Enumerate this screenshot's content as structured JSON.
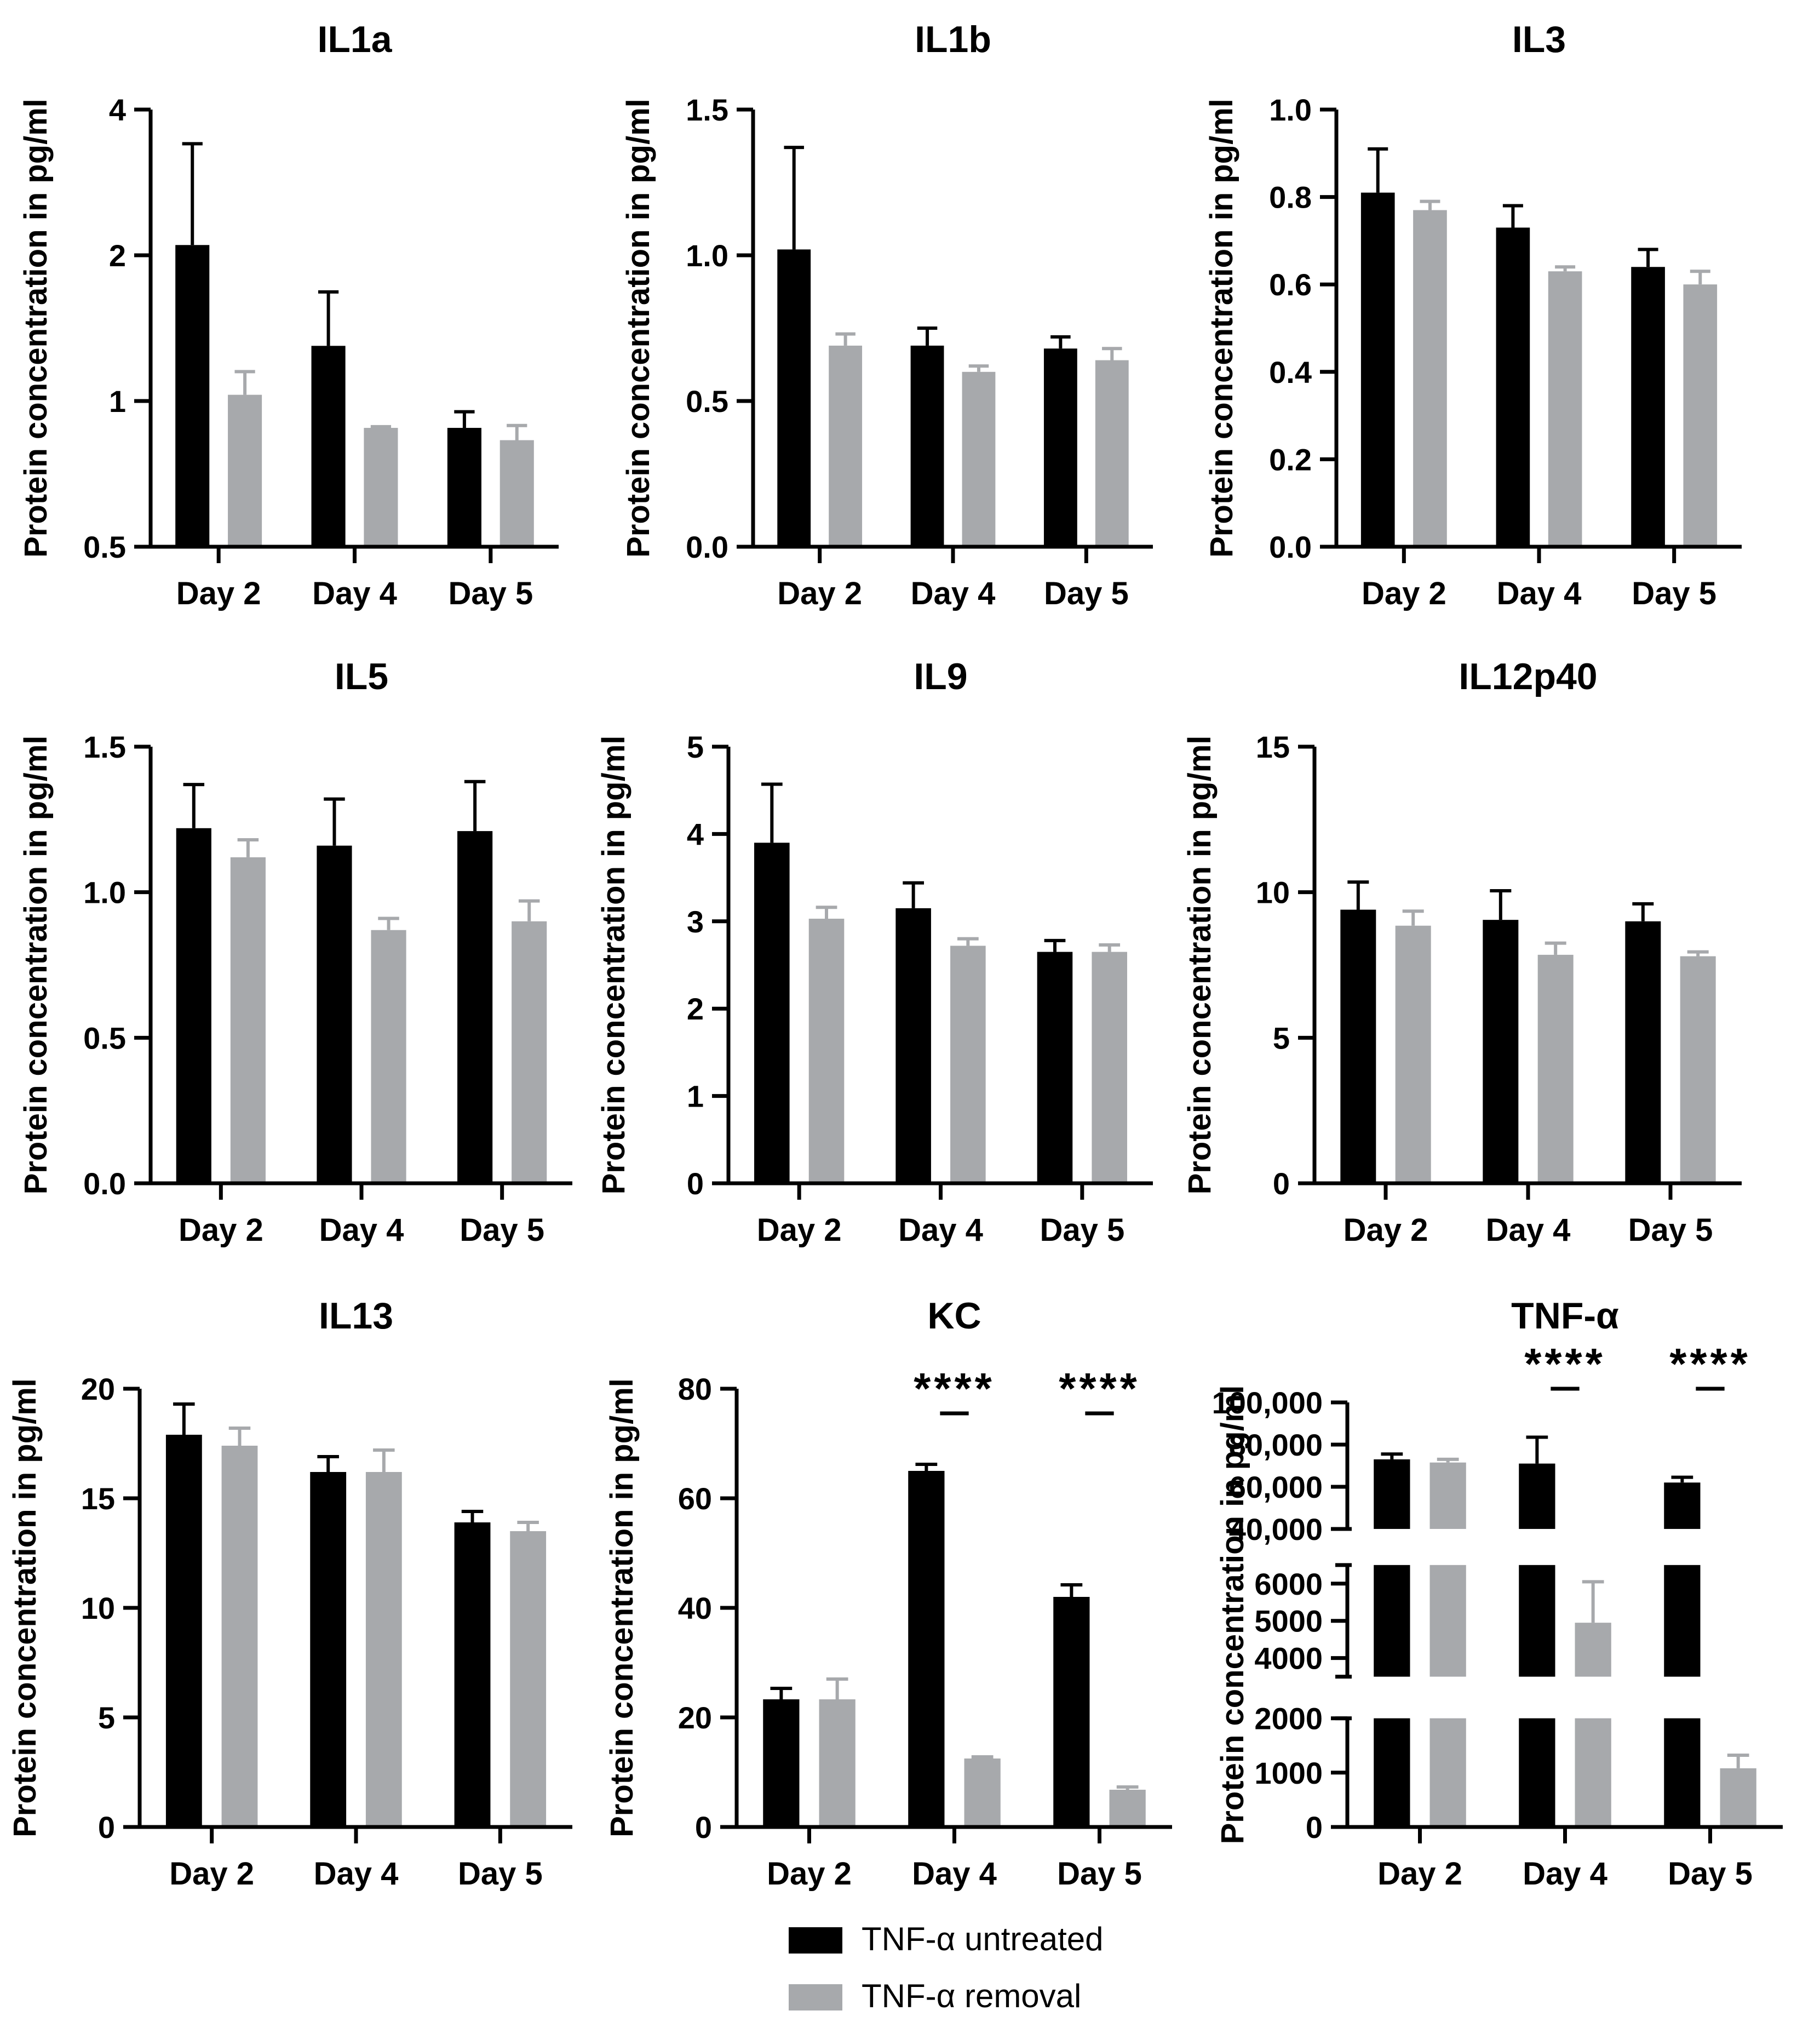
{
  "legend": {
    "position": "bottom-center",
    "items": [
      {
        "label": "TNF-α untreated",
        "color": "#000000"
      },
      {
        "label": "TNF-α removal",
        "color": "#a7a9ac"
      }
    ]
  },
  "chart_data": [
    {
      "type": "bar",
      "title": "IL1a",
      "xlabel": "",
      "ylabel": "Protein concentration in pg/ml",
      "scale": "log2",
      "ylim": [
        0.5,
        4
      ],
      "yticks": [
        0.5,
        1,
        2,
        4
      ],
      "tick_labels": [
        "0.5",
        "1",
        "2",
        "4"
      ],
      "categories": [
        "Day 2",
        "Day 4",
        "Day 5"
      ],
      "series": [
        {
          "name": "TNF-α untreated",
          "values": [
            2.1,
            1.3,
            0.88
          ],
          "errors": [
            1.3,
            0.38,
            0.07
          ]
        },
        {
          "name": "TNF-α removal",
          "values": [
            1.03,
            0.88,
            0.83
          ],
          "errors": [
            0.12,
            0.005,
            0.06
          ]
        }
      ]
    },
    {
      "type": "bar",
      "title": "IL1b",
      "xlabel": "",
      "ylabel": "Protein concentration in pg/ml",
      "ylim": [
        0,
        1.5
      ],
      "yticks": [
        0,
        0.5,
        1.0,
        1.5
      ],
      "tick_labels": [
        "0.0",
        "0.5",
        "1.0",
        "1.5"
      ],
      "categories": [
        "Day 2",
        "Day 4",
        "Day 5"
      ],
      "series": [
        {
          "name": "TNF-α untreated",
          "values": [
            1.02,
            0.69,
            0.68
          ],
          "errors": [
            0.35,
            0.06,
            0.04
          ]
        },
        {
          "name": "TNF-α removal",
          "values": [
            0.69,
            0.6,
            0.64
          ],
          "errors": [
            0.04,
            0.02,
            0.04
          ]
        }
      ]
    },
    {
      "type": "bar",
      "title": "IL3",
      "xlabel": "",
      "ylabel": "Protein concentration in pg/ml",
      "ylim": [
        0,
        1.0
      ],
      "yticks": [
        0,
        0.2,
        0.4,
        0.6,
        0.8,
        1.0
      ],
      "tick_labels": [
        "0.0",
        "0.2",
        "0.4",
        "0.6",
        "0.8",
        "1.0"
      ],
      "categories": [
        "Day 2",
        "Day 4",
        "Day 5"
      ],
      "series": [
        {
          "name": "TNF-α untreated",
          "values": [
            0.81,
            0.73,
            0.64
          ],
          "errors": [
            0.1,
            0.05,
            0.04
          ]
        },
        {
          "name": "TNF-α removal",
          "values": [
            0.77,
            0.63,
            0.6
          ],
          "errors": [
            0.02,
            0.01,
            0.03
          ]
        }
      ]
    },
    {
      "type": "bar",
      "title": "IL5",
      "xlabel": "",
      "ylabel": "Protein concentration in pg/ml",
      "ylim": [
        0,
        1.5
      ],
      "yticks": [
        0,
        0.5,
        1.0,
        1.5
      ],
      "tick_labels": [
        "0.0",
        "0.5",
        "1.0",
        "1.5"
      ],
      "categories": [
        "Day 2",
        "Day 4",
        "Day 5"
      ],
      "series": [
        {
          "name": "TNF-α untreated",
          "values": [
            1.22,
            1.16,
            1.21
          ],
          "errors": [
            0.15,
            0.16,
            0.17
          ]
        },
        {
          "name": "TNF-α removal",
          "values": [
            1.12,
            0.87,
            0.9
          ],
          "errors": [
            0.06,
            0.04,
            0.07
          ]
        }
      ]
    },
    {
      "type": "bar",
      "title": "IL9",
      "xlabel": "",
      "ylabel": "Protein concentration in pg/ml",
      "ylim": [
        0,
        5
      ],
      "yticks": [
        0,
        1,
        2,
        3,
        4,
        5
      ],
      "tick_labels": [
        "0",
        "1",
        "2",
        "3",
        "4",
        "5"
      ],
      "categories": [
        "Day 2",
        "Day 4",
        "Day 5"
      ],
      "series": [
        {
          "name": "TNF-α untreated",
          "values": [
            3.9,
            3.15,
            2.65
          ],
          "errors": [
            0.67,
            0.29,
            0.13
          ]
        },
        {
          "name": "TNF-α removal",
          "values": [
            3.03,
            2.72,
            2.65
          ],
          "errors": [
            0.13,
            0.08,
            0.08
          ]
        }
      ]
    },
    {
      "type": "bar",
      "title": "IL12p40",
      "xlabel": "",
      "ylabel": "Protein concentration in pg/ml",
      "ylim": [
        0,
        15
      ],
      "yticks": [
        0,
        5,
        10,
        15
      ],
      "tick_labels": [
        "0",
        "5",
        "10",
        "15"
      ],
      "categories": [
        "Day 2",
        "Day 4",
        "Day 5"
      ],
      "series": [
        {
          "name": "TNF-α untreated",
          "values": [
            9.4,
            9.05,
            9.0
          ],
          "errors": [
            0.95,
            1.0,
            0.6
          ]
        },
        {
          "name": "TNF-α removal",
          "values": [
            8.85,
            7.85,
            7.8
          ],
          "errors": [
            0.5,
            0.4,
            0.15
          ]
        }
      ]
    },
    {
      "type": "bar",
      "title": "IL13",
      "xlabel": "",
      "ylabel": "Protein concentration in pg/ml",
      "ylim": [
        0,
        20
      ],
      "yticks": [
        0,
        5,
        10,
        15,
        20
      ],
      "tick_labels": [
        "0",
        "5",
        "10",
        "15",
        "20"
      ],
      "categories": [
        "Day 2",
        "Day 4",
        "Day 5"
      ],
      "series": [
        {
          "name": "TNF-α untreated",
          "values": [
            17.9,
            16.2,
            13.9
          ],
          "errors": [
            1.4,
            0.7,
            0.5
          ]
        },
        {
          "name": "TNF-α removal",
          "values": [
            17.4,
            16.2,
            13.5
          ],
          "errors": [
            0.8,
            1.0,
            0.4
          ]
        }
      ]
    },
    {
      "type": "bar",
      "title": "KC",
      "xlabel": "",
      "ylabel": "Protein concentration in pg/ml",
      "ylim": [
        0,
        80
      ],
      "yticks": [
        0,
        20,
        40,
        60,
        80
      ],
      "tick_labels": [
        "0",
        "20",
        "40",
        "60",
        "80"
      ],
      "categories": [
        "Day 2",
        "Day 4",
        "Day 5"
      ],
      "series": [
        {
          "name": "TNF-α untreated",
          "values": [
            23.3,
            65.0,
            42.0
          ],
          "errors": [
            2.0,
            1.2,
            2.2
          ]
        },
        {
          "name": "TNF-α removal",
          "values": [
            23.3,
            12.5,
            6.8
          ],
          "errors": [
            3.7,
            0.3,
            0.5
          ]
        }
      ],
      "significance": [
        {
          "category": "Day 4",
          "label": "****"
        },
        {
          "category": "Day 5",
          "label": "****"
        }
      ]
    },
    {
      "type": "bar",
      "title": "TNF-α",
      "xlabel": "",
      "ylabel": "Protein concentration in pg/ml",
      "axis_break": true,
      "segments": [
        {
          "range": [
            0,
            2000
          ],
          "ticks": [
            0,
            1000,
            2000
          ],
          "tick_labels": [
            "0",
            "1000",
            "2000"
          ]
        },
        {
          "range": [
            3500,
            6500
          ],
          "ticks": [
            4000,
            5000,
            6000
          ],
          "tick_labels": [
            "4000",
            "5000",
            "6000"
          ]
        },
        {
          "range": [
            40000,
            100000
          ],
          "ticks": [
            40000,
            60000,
            80000,
            100000
          ],
          "tick_labels": [
            "40,000",
            "60,000",
            "80,000",
            "100,000"
          ]
        }
      ],
      "categories": [
        "Day 2",
        "Day 4",
        "Day 5"
      ],
      "series": [
        {
          "name": "TNF-α untreated",
          "values": [
            73000,
            71000,
            62000
          ],
          "errors": [
            2500,
            12500,
            2500
          ]
        },
        {
          "name": "TNF-α removal",
          "values": [
            71500,
            4950,
            1080
          ],
          "errors": [
            1500,
            1100,
            240
          ]
        }
      ],
      "significance": [
        {
          "category": "Day 4",
          "label": "****"
        },
        {
          "category": "Day 5",
          "label": "****"
        }
      ]
    }
  ]
}
